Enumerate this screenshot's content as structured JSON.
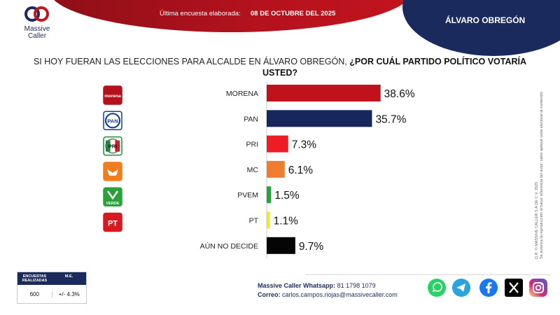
{
  "header": {
    "brand_line1": "Massive",
    "brand_line2": "Caller",
    "survey_label": "Última encuesta elaborada:",
    "survey_date": "08 DE OCTUBRE DEL 2025",
    "district": "ÁLVARO OBREGÓN"
  },
  "question": {
    "part1": "SI HOY FUERAN LAS ELECCIONES PARA ALCALDE EN ÁLVARO OBREGÓN,",
    "part2": "¿POR CUÁL PARTIDO POLÍTICO VOTARÍA USTED?"
  },
  "party_logos": [
    {
      "icon": "morena-logo-icon",
      "text": "morena",
      "color": "#b3121d"
    },
    {
      "icon": "pan-logo-icon",
      "text": "PAN",
      "color": "#1b3f8f"
    },
    {
      "icon": "pri-logo-icon",
      "text": "PRI",
      "color": "#1a8f3a"
    },
    {
      "icon": "mc-logo-icon",
      "text": "",
      "color": "#f07d1e"
    },
    {
      "icon": "pvem-logo-icon",
      "text": "VERDE",
      "color": "#2aa13a"
    },
    {
      "icon": "pt-logo-icon",
      "text": "PT",
      "color": "#d71920"
    }
  ],
  "chart_data": {
    "type": "bar",
    "orientation": "horizontal",
    "title": "SI HOY FUERAN LAS ELECCIONES PARA ALCALDE EN ÁLVARO OBREGÓN, ¿POR CUÁL PARTIDO POLÍTICO VOTARÍA USTED?",
    "categories": [
      "MORENA",
      "PAN",
      "PRI",
      "MC",
      "PVEM",
      "PT",
      "AÚN NO DECIDE"
    ],
    "values": [
      38.6,
      35.7,
      7.3,
      6.1,
      1.5,
      1.1,
      9.7
    ],
    "labels": [
      "38.6%",
      "35.7%",
      "7.3%",
      "6.1%",
      "1.5%",
      "1.1%",
      "9.7%"
    ],
    "colors": [
      "#c0121c",
      "#17275c",
      "#ee1c25",
      "#f07d2f",
      "#2aa13a",
      "#f5e52a",
      "#050505"
    ],
    "xlim": [
      0,
      45
    ],
    "grid": false,
    "xlabel": "",
    "ylabel": ""
  },
  "sidenote": {
    "line1": "D.R. © MASSIVE CALLER S.A DE C.V. 2025",
    "line2": "Se autoriza la reproducción al hacer referencia del autor, salvo apliqué veda electoral al contenido"
  },
  "sample": {
    "head1": "ENCUESTAS REALIZADAS",
    "head2": "M.E.",
    "value1": "600",
    "value2": "+/- 4.3%"
  },
  "contact": {
    "whatsapp_label": "Massive Caller Whatsapp:",
    "whatsapp_value": "81 1798 1079",
    "email_label": "Correo:",
    "email_value": "carlos.campos.riojas@massivecaller.com"
  },
  "social": [
    "whatsapp-icon",
    "telegram-icon",
    "facebook-icon",
    "x-icon",
    "instagram-icon"
  ]
}
